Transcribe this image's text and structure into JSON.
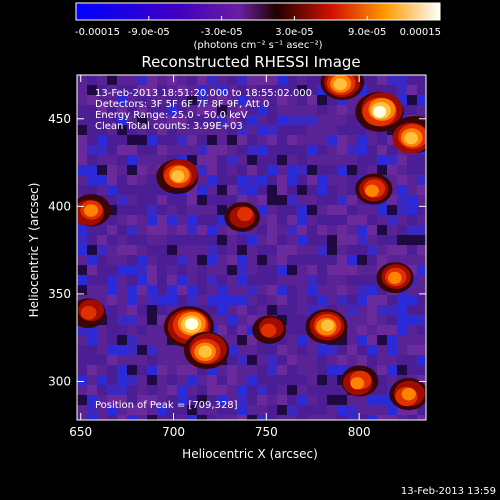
{
  "chart_data": {
    "type": "heatmap",
    "title": "Reconstructed RHESSI Image",
    "xlabel": "Heliocentric X (arcsec)",
    "ylabel": "Heliocentric Y (arcsec)",
    "xlim": [
      648,
      836
    ],
    "ylim": [
      278,
      475
    ],
    "x_ticks": [
      650,
      700,
      750,
      800
    ],
    "y_ticks": [
      300,
      350,
      400,
      450
    ],
    "colorbar": {
      "range": [
        -0.00015,
        0.00015
      ],
      "tick_labels": [
        "-0.00015",
        "-9.0e-05",
        "-3.0e-05",
        "3.0e-05",
        "9.0e-05",
        "0.00015"
      ],
      "units": "(photons cm⁻² s⁻¹ asec⁻²)"
    },
    "annotations": [
      "13-Feb-2013 18:51:20.000 to 18:55:02.000",
      "Detectors: 3F 5F 6F 7F 8F 9F, Att 0",
      "Energy Range: 25.0 - 50.0 keV",
      "Clean     Total counts: 3.99E+03"
    ],
    "peak_text": "Position of Peak = [709,328]",
    "peak": [
      709,
      328
    ],
    "hot_regions": [
      {
        "x": 709,
        "y": 332,
        "level": 1.0
      },
      {
        "x": 718,
        "y": 318,
        "level": 0.85
      },
      {
        "x": 703,
        "y": 418,
        "level": 0.75
      },
      {
        "x": 738,
        "y": 395,
        "level": 0.55
      },
      {
        "x": 655,
        "y": 397,
        "level": 0.65
      },
      {
        "x": 655,
        "y": 340,
        "level": 0.55
      },
      {
        "x": 812,
        "y": 455,
        "level": 0.95
      },
      {
        "x": 829,
        "y": 440,
        "level": 0.85
      },
      {
        "x": 790,
        "y": 470,
        "level": 0.8
      },
      {
        "x": 808,
        "y": 410,
        "level": 0.6
      },
      {
        "x": 820,
        "y": 360,
        "level": 0.6
      },
      {
        "x": 783,
        "y": 332,
        "level": 0.75
      },
      {
        "x": 800,
        "y": 300,
        "level": 0.6
      },
      {
        "x": 826,
        "y": 292,
        "level": 0.65
      },
      {
        "x": 752,
        "y": 330,
        "level": 0.5
      }
    ],
    "timestamp": "13-Feb-2013 13:59"
  }
}
